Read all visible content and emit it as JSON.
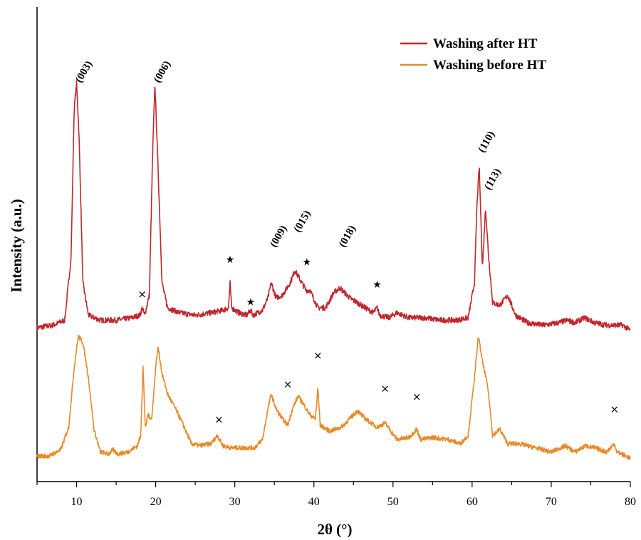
{
  "chart_data": {
    "type": "line",
    "xlabel": "2θ (°)",
    "ylabel": "Intensity (a.u.)",
    "xlim": [
      5,
      80
    ],
    "x_ticks": [
      "10",
      "20",
      "30",
      "40",
      "50",
      "60",
      "70",
      "80"
    ],
    "y_ticks_labeled": false,
    "grid": false,
    "legend_position": "top-right",
    "series": [
      {
        "name": "Washing after HT",
        "color": "#c0272d",
        "points": [
          [
            5,
            0.02
          ],
          [
            7,
            0.03
          ],
          [
            8.5,
            0.05
          ],
          [
            9.3,
            0.3
          ],
          [
            9.7,
            0.9
          ],
          [
            10.0,
            1.0
          ],
          [
            10.3,
            0.8
          ],
          [
            10.8,
            0.2
          ],
          [
            11.5,
            0.07
          ],
          [
            13,
            0.05
          ],
          [
            15,
            0.05
          ],
          [
            17,
            0.06
          ],
          [
            18.0,
            0.07
          ],
          [
            18.3,
            0.1
          ],
          [
            18.6,
            0.07
          ],
          [
            19.2,
            0.15
          ],
          [
            19.6,
            0.7
          ],
          [
            19.9,
            1.0
          ],
          [
            20.2,
            0.75
          ],
          [
            20.8,
            0.2
          ],
          [
            21.5,
            0.1
          ],
          [
            23,
            0.08
          ],
          [
            25,
            0.07
          ],
          [
            27,
            0.08
          ],
          [
            28.5,
            0.09
          ],
          [
            29.2,
            0.1
          ],
          [
            29.4,
            0.2
          ],
          [
            29.6,
            0.1
          ],
          [
            30.5,
            0.08
          ],
          [
            31.5,
            0.07
          ],
          [
            32.0,
            0.09
          ],
          [
            32.3,
            0.07
          ],
          [
            33.5,
            0.09
          ],
          [
            34.2,
            0.14
          ],
          [
            34.6,
            0.2
          ],
          [
            35.2,
            0.14
          ],
          [
            36,
            0.15
          ],
          [
            37,
            0.2
          ],
          [
            37.6,
            0.25
          ],
          [
            38.3,
            0.21
          ],
          [
            39.0,
            0.17
          ],
          [
            39.5,
            0.17
          ],
          [
            40.5,
            0.1
          ],
          [
            41.5,
            0.1
          ],
          [
            42.5,
            0.16
          ],
          [
            43.3,
            0.18
          ],
          [
            44.5,
            0.14
          ],
          [
            45.5,
            0.12
          ],
          [
            46.5,
            0.1
          ],
          [
            47.5,
            0.08
          ],
          [
            48.0,
            0.1
          ],
          [
            48.3,
            0.07
          ],
          [
            49.5,
            0.06
          ],
          [
            50.5,
            0.08
          ],
          [
            52,
            0.06
          ],
          [
            54,
            0.06
          ],
          [
            56,
            0.05
          ],
          [
            58,
            0.05
          ],
          [
            59.5,
            0.06
          ],
          [
            60.3,
            0.2
          ],
          [
            60.6,
            0.5
          ],
          [
            60.9,
            0.67
          ],
          [
            61.3,
            0.26
          ],
          [
            61.7,
            0.5
          ],
          [
            62.1,
            0.3
          ],
          [
            62.6,
            0.12
          ],
          [
            63.5,
            0.11
          ],
          [
            64.5,
            0.15
          ],
          [
            65.5,
            0.07
          ],
          [
            67,
            0.04
          ],
          [
            69,
            0.03
          ],
          [
            71,
            0.04
          ],
          [
            72,
            0.05
          ],
          [
            73,
            0.04
          ],
          [
            74.2,
            0.06
          ],
          [
            75.5,
            0.04
          ],
          [
            77,
            0.03
          ],
          [
            79,
            0.03
          ],
          [
            80,
            0.01
          ]
        ]
      },
      {
        "name": "Washing before HT",
        "color": "#e88a28",
        "points": [
          [
            5,
            0.02
          ],
          [
            6.5,
            0.02
          ],
          [
            8,
            0.05
          ],
          [
            9,
            0.16
          ],
          [
            9.7,
            0.45
          ],
          [
            10.2,
            0.6
          ],
          [
            10.8,
            0.57
          ],
          [
            11.5,
            0.4
          ],
          [
            12.2,
            0.15
          ],
          [
            13,
            0.04
          ],
          [
            14,
            0.03
          ],
          [
            14.6,
            0.05
          ],
          [
            15.2,
            0.03
          ],
          [
            16.5,
            0.04
          ],
          [
            17.7,
            0.07
          ],
          [
            18.1,
            0.12
          ],
          [
            18.4,
            0.45
          ],
          [
            18.7,
            0.15
          ],
          [
            19.0,
            0.22
          ],
          [
            19.5,
            0.2
          ],
          [
            20.0,
            0.45
          ],
          [
            20.3,
            0.55
          ],
          [
            20.8,
            0.42
          ],
          [
            21.5,
            0.32
          ],
          [
            22.5,
            0.25
          ],
          [
            23.5,
            0.17
          ],
          [
            24.5,
            0.08
          ],
          [
            25.5,
            0.07
          ],
          [
            27,
            0.08
          ],
          [
            27.8,
            0.12
          ],
          [
            28.5,
            0.07
          ],
          [
            29.5,
            0.06
          ],
          [
            31,
            0.06
          ],
          [
            32.5,
            0.06
          ],
          [
            33.5,
            0.1
          ],
          [
            34.2,
            0.25
          ],
          [
            34.6,
            0.32
          ],
          [
            35.2,
            0.25
          ],
          [
            36,
            0.2
          ],
          [
            36.7,
            0.17
          ],
          [
            37.3,
            0.25
          ],
          [
            38,
            0.31
          ],
          [
            38.7,
            0.27
          ],
          [
            39.5,
            0.22
          ],
          [
            40.2,
            0.2
          ],
          [
            40.5,
            0.35
          ],
          [
            40.8,
            0.17
          ],
          [
            42,
            0.14
          ],
          [
            43.5,
            0.16
          ],
          [
            45.5,
            0.24
          ],
          [
            46.5,
            0.2
          ],
          [
            48,
            0.16
          ],
          [
            49,
            0.18
          ],
          [
            50.5,
            0.1
          ],
          [
            52,
            0.11
          ],
          [
            53.0,
            0.15
          ],
          [
            53.5,
            0.1
          ],
          [
            55,
            0.11
          ],
          [
            57,
            0.1
          ],
          [
            58.5,
            0.08
          ],
          [
            59.5,
            0.12
          ],
          [
            60.3,
            0.4
          ],
          [
            60.8,
            0.6
          ],
          [
            61.3,
            0.48
          ],
          [
            62.0,
            0.35
          ],
          [
            62.6,
            0.12
          ],
          [
            63.5,
            0.15
          ],
          [
            64.5,
            0.08
          ],
          [
            66,
            0.08
          ],
          [
            68,
            0.06
          ],
          [
            70,
            0.04
          ],
          [
            71.8,
            0.07
          ],
          [
            73,
            0.04
          ],
          [
            74.3,
            0.07
          ],
          [
            75.5,
            0.06
          ],
          [
            77,
            0.04
          ],
          [
            78.0,
            0.08
          ],
          [
            78.3,
            0.04
          ],
          [
            80,
            0.01
          ]
        ]
      }
    ],
    "peak_labels": [
      {
        "text": "(003)",
        "x": 10.0,
        "series": 0,
        "y": 1.0
      },
      {
        "text": "(006)",
        "x": 19.9,
        "series": 0,
        "y": 1.0
      },
      {
        "text": "(009)",
        "x": 34.6,
        "series": 0,
        "y": 0.34
      },
      {
        "text": "(015)",
        "x": 37.6,
        "series": 0,
        "y": 0.4
      },
      {
        "text": "(018)",
        "x": 43.3,
        "series": 0,
        "y": 0.34
      },
      {
        "text": "(110)",
        "x": 60.9,
        "series": 0,
        "y": 0.72
      },
      {
        "text": "(113)",
        "x": 61.7,
        "series": 0,
        "y": 0.57
      }
    ],
    "markers": [
      {
        "symbol": "×",
        "x": 18.3,
        "series": 0,
        "y": 0.14
      },
      {
        "symbol": "★",
        "x": 29.4,
        "series": 0,
        "y": 0.28
      },
      {
        "symbol": "★",
        "x": 32.0,
        "series": 0,
        "y": 0.11
      },
      {
        "symbol": "★",
        "x": 39.1,
        "series": 0,
        "y": 0.27
      },
      {
        "symbol": "★",
        "x": 48.0,
        "series": 0,
        "y": 0.18
      },
      {
        "symbol": "×",
        "x": 28.0,
        "series": 1,
        "y": 0.18
      },
      {
        "symbol": "×",
        "x": 36.7,
        "series": 1,
        "y": 0.35
      },
      {
        "symbol": "×",
        "x": 40.5,
        "series": 1,
        "y": 0.49
      },
      {
        "symbol": "×",
        "x": 49.0,
        "series": 1,
        "y": 0.33
      },
      {
        "symbol": "×",
        "x": 53.0,
        "series": 1,
        "y": 0.29
      },
      {
        "symbol": "×",
        "x": 78.0,
        "series": 1,
        "y": 0.23
      }
    ]
  }
}
